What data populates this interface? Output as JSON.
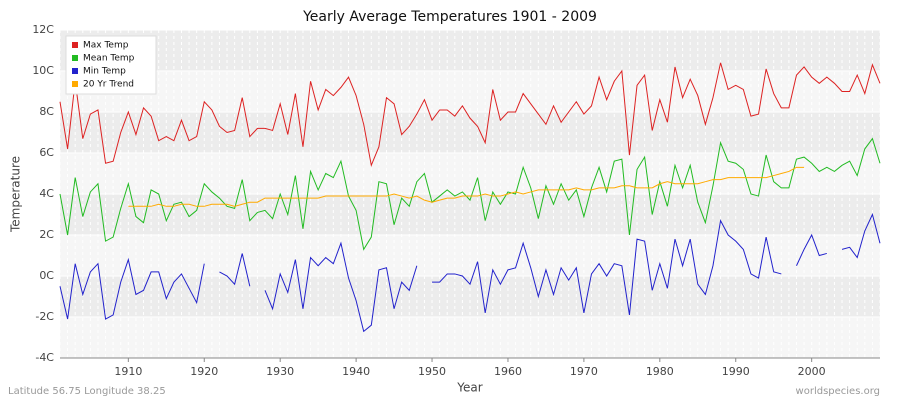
{
  "chart_data": {
    "type": "line",
    "title": "Yearly Average Temperatures 1901 - 2009",
    "x_label": "Year",
    "y_label": "Temperature",
    "footer_left": "Latitude 56.75 Longitude 38.25",
    "footer_right": "worldspecies.org",
    "x": [
      1901,
      1902,
      1903,
      1904,
      1905,
      1906,
      1907,
      1908,
      1909,
      1910,
      1911,
      1912,
      1913,
      1914,
      1915,
      1916,
      1917,
      1918,
      1919,
      1920,
      1921,
      1922,
      1923,
      1924,
      1925,
      1926,
      1927,
      1928,
      1929,
      1930,
      1931,
      1932,
      1933,
      1934,
      1935,
      1936,
      1937,
      1938,
      1939,
      1940,
      1941,
      1942,
      1943,
      1944,
      1945,
      1946,
      1947,
      1948,
      1949,
      1950,
      1951,
      1952,
      1953,
      1954,
      1955,
      1956,
      1957,
      1958,
      1959,
      1960,
      1961,
      1962,
      1963,
      1964,
      1965,
      1966,
      1967,
      1968,
      1969,
      1970,
      1971,
      1972,
      1973,
      1974,
      1975,
      1976,
      1977,
      1978,
      1979,
      1980,
      1981,
      1982,
      1983,
      1984,
      1985,
      1986,
      1987,
      1988,
      1989,
      1990,
      1991,
      1992,
      1993,
      1994,
      1995,
      1996,
      1997,
      1998,
      1999,
      2000,
      2001,
      2002,
      2003,
      2004,
      2005,
      2006,
      2007,
      2008,
      2009
    ],
    "xlim": [
      1901,
      2009
    ],
    "xticks": [
      1910,
      1920,
      1930,
      1940,
      1950,
      1960,
      1970,
      1980,
      1990,
      2000
    ],
    "ylim": [
      -4,
      12
    ],
    "yticks": [
      {
        "value": -4,
        "label": "-4C"
      },
      {
        "value": -2,
        "label": "-2C"
      },
      {
        "value": 0,
        "label": "0C"
      },
      {
        "value": 2,
        "label": "2C"
      },
      {
        "value": 4,
        "label": "4C"
      },
      {
        "value": 6,
        "label": "6C"
      },
      {
        "value": 8,
        "label": "8C"
      },
      {
        "value": 10,
        "label": "10C"
      },
      {
        "value": 12,
        "label": "12C"
      }
    ],
    "grid": true,
    "legend": "top-left",
    "series": [
      {
        "name": "Max Temp",
        "color": "#dd2222",
        "values": [
          8.5,
          6.2,
          9.5,
          6.7,
          7.9,
          8.1,
          5.5,
          5.6,
          7.0,
          8.0,
          6.9,
          8.2,
          7.8,
          6.6,
          6.8,
          6.6,
          7.6,
          6.6,
          6.8,
          8.5,
          8.1,
          7.3,
          7.0,
          7.1,
          8.7,
          6.8,
          7.2,
          7.2,
          7.1,
          8.4,
          6.9,
          8.9,
          6.3,
          9.5,
          8.1,
          9.1,
          8.8,
          9.2,
          9.7,
          8.8,
          7.4,
          5.4,
          6.3,
          8.7,
          8.4,
          6.9,
          7.3,
          7.9,
          8.6,
          7.6,
          8.1,
          8.1,
          7.8,
          8.3,
          7.7,
          7.3,
          6.5,
          9.1,
          7.6,
          8.0,
          8.0,
          8.9,
          8.4,
          7.9,
          7.4,
          8.3,
          7.5,
          8.0,
          8.5,
          7.9,
          8.3,
          9.7,
          8.6,
          9.5,
          10.0,
          5.9,
          9.3,
          9.8,
          7.1,
          8.6,
          7.5,
          10.2,
          8.7,
          9.6,
          8.8,
          7.4,
          8.7,
          10.4,
          9.1,
          9.3,
          9.1,
          7.8,
          7.9,
          10.1,
          8.9,
          8.2,
          8.2,
          9.8,
          10.2,
          9.7,
          9.4,
          9.7,
          9.4,
          9.0,
          9.0,
          9.8,
          8.9,
          10.3,
          9.4
        ]
      },
      {
        "name": "Mean Temp",
        "color": "#22bb22",
        "values": [
          4.0,
          2.0,
          4.8,
          2.9,
          4.1,
          4.5,
          1.7,
          1.9,
          3.3,
          4.5,
          2.9,
          2.6,
          4.2,
          4.0,
          2.7,
          3.5,
          3.6,
          2.9,
          3.2,
          4.5,
          4.1,
          3.8,
          3.4,
          3.3,
          4.7,
          2.7,
          3.1,
          3.2,
          2.8,
          4.0,
          3.0,
          4.9,
          2.3,
          5.1,
          4.2,
          5.0,
          4.8,
          5.6,
          3.9,
          3.2,
          1.3,
          1.9,
          4.6,
          4.5,
          2.5,
          3.8,
          3.4,
          4.6,
          5.0,
          3.6,
          3.9,
          4.2,
          3.9,
          4.1,
          3.7,
          4.8,
          2.7,
          4.1,
          3.5,
          4.1,
          4.0,
          5.3,
          4.3,
          2.8,
          4.4,
          3.5,
          4.5,
          3.7,
          4.2,
          2.9,
          4.3,
          5.3,
          4.1,
          5.6,
          5.7,
          2.0,
          5.2,
          5.8,
          3.0,
          4.6,
          3.4,
          5.4,
          4.3,
          5.4,
          3.6,
          2.6,
          4.4,
          6.5,
          5.6,
          5.5,
          5.2,
          4.0,
          3.9,
          5.9,
          4.6,
          4.3,
          4.3,
          5.7,
          5.8,
          5.5,
          5.1,
          5.3,
          5.1,
          5.4,
          5.6,
          4.9,
          6.2,
          6.7,
          5.5
        ]
      },
      {
        "name": "Min Temp",
        "color": "#2222cc",
        "values": [
          -0.5,
          -2.1,
          0.6,
          -0.9,
          0.2,
          0.6,
          -2.1,
          -1.9,
          -0.3,
          0.8,
          -0.9,
          -0.7,
          0.2,
          0.2,
          -1.1,
          -0.3,
          0.1,
          -0.6,
          -1.3,
          0.6,
          null,
          0.2,
          0.0,
          -0.4,
          1.1,
          -0.5,
          null,
          -0.7,
          -1.6,
          0.1,
          -0.8,
          0.8,
          -1.6,
          0.9,
          0.5,
          0.9,
          0.6,
          1.6,
          -0.1,
          -1.2,
          -2.7,
          -2.4,
          0.3,
          0.4,
          -1.6,
          -0.3,
          -0.7,
          0.5,
          null,
          -0.3,
          -0.3,
          0.1,
          0.1,
          0.0,
          -0.4,
          0.7,
          -1.8,
          0.3,
          -0.4,
          0.3,
          0.4,
          1.6,
          0.4,
          -1.0,
          0.3,
          -0.9,
          0.4,
          -0.2,
          0.4,
          -1.8,
          0.1,
          0.6,
          0.0,
          0.6,
          0.5,
          -1.9,
          1.8,
          1.7,
          -0.7,
          0.6,
          -0.6,
          1.8,
          0.5,
          1.8,
          -0.4,
          -0.9,
          0.5,
          2.7,
          2.0,
          1.7,
          1.3,
          0.1,
          -0.1,
          1.9,
          0.2,
          0.1,
          null,
          0.5,
          1.3,
          2.0,
          1.0,
          1.1,
          null,
          1.3,
          1.4,
          0.9,
          2.2,
          3.0,
          1.6
        ]
      },
      {
        "name": "20 Yr Trend",
        "color": "#ffaa00",
        "values": [
          null,
          null,
          null,
          null,
          null,
          null,
          null,
          null,
          null,
          3.4,
          3.4,
          3.4,
          3.4,
          3.5,
          3.4,
          3.4,
          3.5,
          3.5,
          3.4,
          3.4,
          3.5,
          3.5,
          3.5,
          3.4,
          3.5,
          3.6,
          3.6,
          3.8,
          3.8,
          3.8,
          3.8,
          3.8,
          3.8,
          3.8,
          3.8,
          3.9,
          3.9,
          3.9,
          3.9,
          3.9,
          3.9,
          3.9,
          3.9,
          3.9,
          4.0,
          3.9,
          3.8,
          3.9,
          3.7,
          3.6,
          3.7,
          3.8,
          3.8,
          3.9,
          3.9,
          3.9,
          4.0,
          3.9,
          3.9,
          4.0,
          4.1,
          4.0,
          4.1,
          4.2,
          4.2,
          4.2,
          4.2,
          4.2,
          4.3,
          4.2,
          4.2,
          4.3,
          4.3,
          4.3,
          4.4,
          4.4,
          4.3,
          4.3,
          4.3,
          4.5,
          4.6,
          4.5,
          4.5,
          4.5,
          4.5,
          4.6,
          4.7,
          4.7,
          4.8,
          4.8,
          4.8,
          4.8,
          4.8,
          4.8,
          4.9,
          5.0,
          5.1,
          5.3,
          5.3,
          null,
          null,
          null,
          null,
          null,
          null,
          null,
          null,
          null,
          null
        ]
      }
    ]
  }
}
